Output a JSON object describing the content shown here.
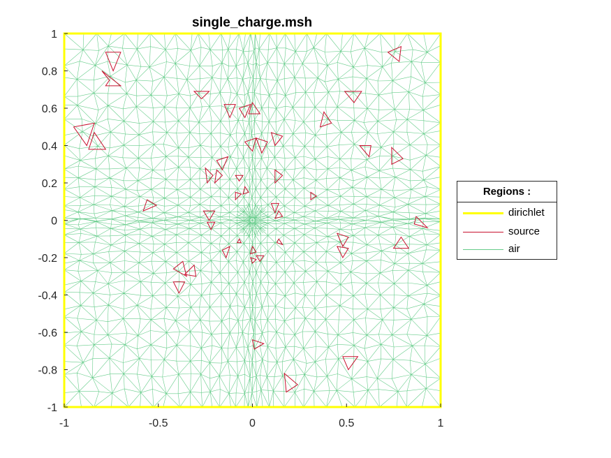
{
  "chart_data": {
    "type": "mesh",
    "title": "single_charge.msh",
    "xlim": [
      -1,
      1
    ],
    "ylim": [
      -1,
      1
    ],
    "x_ticks": [
      "-1",
      "-0.5",
      "0",
      "0.5",
      "1"
    ],
    "y_ticks": [
      "-1",
      "-0.8",
      "-0.6",
      "-0.4",
      "-0.2",
      "0",
      "0.2",
      "0.4",
      "0.6",
      "0.8",
      "1"
    ],
    "x_tick_values": [
      -1,
      -0.5,
      0,
      0.5,
      1
    ],
    "y_tick_values": [
      -1,
      -0.8,
      -0.6,
      -0.4,
      -0.2,
      0,
      0.2,
      0.4,
      0.6,
      0.8,
      1
    ],
    "legend": {
      "title": "Regions :",
      "position": "right-outside",
      "entries": [
        {
          "label": "dirichlet",
          "color": "#ffff00"
        },
        {
          "label": "source",
          "color": "#c8102e"
        },
        {
          "label": "air",
          "color": "#66cc8a"
        }
      ]
    },
    "source_triangles": [
      [
        [
          -0.78,
          0.9
        ],
        [
          -0.7,
          0.9
        ],
        [
          -0.74,
          0.8
        ]
      ],
      [
        [
          -0.8,
          0.8
        ],
        [
          -0.76,
          0.75
        ],
        [
          -0.78,
          0.72
        ],
        [
          -0.7,
          0.72
        ]
      ],
      [
        [
          -0.95,
          0.5
        ],
        [
          -0.88,
          0.4
        ],
        [
          -0.84,
          0.52
        ]
      ],
      [
        [
          -0.87,
          0.38
        ],
        [
          -0.84,
          0.47
        ],
        [
          -0.78,
          0.38
        ]
      ],
      [
        [
          -0.31,
          0.69
        ],
        [
          -0.23,
          0.69
        ],
        [
          -0.27,
          0.65
        ]
      ],
      [
        [
          -0.15,
          0.62
        ],
        [
          -0.09,
          0.62
        ],
        [
          -0.12,
          0.55
        ]
      ],
      [
        [
          -0.07,
          0.6
        ],
        [
          -0.01,
          0.62
        ],
        [
          -0.04,
          0.55
        ]
      ],
      [
        [
          0,
          0.63
        ],
        [
          0.04,
          0.57
        ],
        [
          -0.02,
          0.57
        ]
      ],
      [
        [
          -0.04,
          0.42
        ],
        [
          0.02,
          0.44
        ],
        [
          0.0,
          0.37
        ]
      ],
      [
        [
          0.02,
          0.44
        ],
        [
          0.08,
          0.42
        ],
        [
          0.05,
          0.36
        ]
      ],
      [
        [
          0.1,
          0.47
        ],
        [
          0.16,
          0.45
        ],
        [
          0.12,
          0.4
        ]
      ],
      [
        [
          -0.19,
          0.32
        ],
        [
          -0.13,
          0.34
        ],
        [
          -0.16,
          0.27
        ]
      ],
      [
        [
          -0.25,
          0.28
        ],
        [
          -0.21,
          0.24
        ],
        [
          -0.24,
          0.2
        ]
      ],
      [
        [
          0.38,
          0.58
        ],
        [
          0.42,
          0.52
        ],
        [
          0.36,
          0.5
        ]
      ],
      [
        [
          0.49,
          0.69
        ],
        [
          0.58,
          0.69
        ],
        [
          0.54,
          0.63
        ]
      ],
      [
        [
          0.79,
          0.93
        ],
        [
          0.72,
          0.9
        ],
        [
          0.78,
          0.85
        ]
      ],
      [
        [
          0.57,
          0.4
        ],
        [
          0.63,
          0.4
        ],
        [
          0.62,
          0.34
        ]
      ],
      [
        [
          0.74,
          0.39
        ],
        [
          0.8,
          0.33
        ],
        [
          0.74,
          0.3
        ]
      ],
      [
        [
          0.87,
          0.02
        ],
        [
          0.93,
          -0.04
        ],
        [
          0.86,
          -0.02
        ]
      ],
      [
        [
          0.79,
          -0.09
        ],
        [
          0.75,
          -0.15
        ],
        [
          0.83,
          -0.15
        ]
      ],
      [
        [
          0.45,
          -0.07
        ],
        [
          0.51,
          -0.09
        ],
        [
          0.48,
          -0.14
        ]
      ],
      [
        [
          0.45,
          -0.14
        ],
        [
          0.51,
          -0.15
        ],
        [
          0.48,
          -0.2
        ]
      ],
      [
        [
          -0.56,
          0.11
        ],
        [
          -0.51,
          0.08
        ],
        [
          -0.58,
          0.05
        ]
      ],
      [
        [
          -0.42,
          -0.26
        ],
        [
          -0.37,
          -0.22
        ],
        [
          -0.35,
          -0.3
        ]
      ],
      [
        [
          -0.36,
          -0.29
        ],
        [
          -0.31,
          -0.24
        ],
        [
          -0.3,
          -0.3
        ]
      ],
      [
        [
          -0.42,
          -0.33
        ],
        [
          -0.36,
          -0.33
        ],
        [
          -0.39,
          -0.39
        ]
      ],
      [
        [
          -0.26,
          0.05
        ],
        [
          -0.2,
          0.05
        ],
        [
          -0.23,
          0.0
        ]
      ],
      [
        [
          -0.24,
          -0.01
        ],
        [
          -0.2,
          -0.01
        ],
        [
          -0.22,
          -0.05
        ]
      ],
      [
        [
          -0.16,
          -0.16
        ],
        [
          -0.12,
          -0.14
        ],
        [
          -0.14,
          -0.2
        ]
      ],
      [
        [
          -0.19,
          0.27
        ],
        [
          -0.16,
          0.24
        ],
        [
          -0.2,
          0.2
        ]
      ],
      [
        [
          -0.09,
          0.24
        ],
        [
          -0.05,
          0.24
        ],
        [
          -0.07,
          0.21
        ]
      ],
      [
        [
          -0.04,
          0.18
        ],
        [
          -0.02,
          0.15
        ],
        [
          -0.05,
          0.14
        ]
      ],
      [
        [
          -0.09,
          0.15
        ],
        [
          -0.06,
          0.14
        ],
        [
          -0.09,
          0.11
        ]
      ],
      [
        [
          0.12,
          0.27
        ],
        [
          0.16,
          0.24
        ],
        [
          0.12,
          0.2
        ]
      ],
      [
        [
          0.31,
          0.15
        ],
        [
          0.34,
          0.13
        ],
        [
          0.31,
          0.11
        ]
      ],
      [
        [
          0.1,
          0.09
        ],
        [
          0.14,
          0.09
        ],
        [
          0.12,
          0.04
        ]
      ],
      [
        [
          0.14,
          0.05
        ],
        [
          0.16,
          0.02
        ],
        [
          0.12,
          0.01
        ]
      ],
      [
        [
          0.14,
          -0.1
        ],
        [
          0.16,
          -0.13
        ],
        [
          0.13,
          -0.12
        ]
      ],
      [
        [
          0.0,
          -0.14
        ],
        [
          0.02,
          -0.17
        ],
        [
          -0.01,
          -0.18
        ]
      ],
      [
        [
          0.02,
          -0.19
        ],
        [
          0.06,
          -0.19
        ],
        [
          0.04,
          -0.22
        ]
      ],
      [
        [
          -0.01,
          -0.2
        ],
        [
          0.02,
          -0.21
        ],
        [
          0.0,
          -0.23
        ]
      ],
      [
        [
          -0.07,
          -0.1
        ],
        [
          -0.06,
          -0.12
        ],
        [
          -0.08,
          -0.12
        ]
      ],
      [
        [
          0.0,
          -0.64
        ],
        [
          0.06,
          -0.66
        ],
        [
          0.01,
          -0.69
        ]
      ],
      [
        [
          0.48,
          -0.73
        ],
        [
          0.56,
          -0.73
        ],
        [
          0.51,
          -0.8
        ]
      ],
      [
        [
          0.17,
          -0.82
        ],
        [
          0.24,
          -0.88
        ],
        [
          0.18,
          -0.92
        ]
      ]
    ]
  }
}
